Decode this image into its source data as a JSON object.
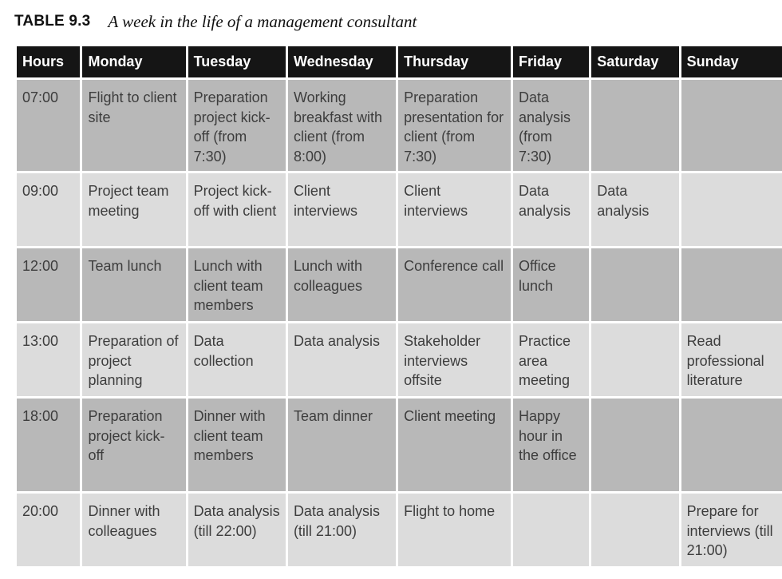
{
  "caption": {
    "label": "TABLE 9.3",
    "title": "A week in the life of a management consultant"
  },
  "table": {
    "headers": [
      "Hours",
      "Monday",
      "Tuesday",
      "Wednesday",
      "Thursday",
      "Friday",
      "Saturday",
      "Sunday"
    ],
    "rows": [
      [
        "07:00",
        "Flight to client site",
        "Preparation project kick-off (from 7:30)",
        "Working breakfast with client (from 8:00)",
        "Preparation presentation for client (from 7:30)",
        "Data analysis (from 7:30)",
        "",
        ""
      ],
      [
        "09:00",
        "Project team meeting",
        "Project kick-off with client",
        "Client interviews",
        "Client interviews",
        "Data analysis",
        "Data analysis",
        ""
      ],
      [
        "12:00",
        "Team lunch",
        "Lunch with client team members",
        "Lunch with colleagues",
        "Conference call",
        "Office lunch",
        "",
        ""
      ],
      [
        "13:00",
        "Preparation of project planning",
        "Data collection",
        "Data analysis",
        "Stakeholder interviews offsite",
        "Practice area meeting",
        "",
        "Read professional literature"
      ],
      [
        "18:00",
        "Preparation project kick-off",
        "Dinner with client team members",
        "Team dinner",
        "Client meeting",
        "Happy hour in the office",
        "",
        ""
      ],
      [
        "20:00",
        "Dinner with colleagues",
        "Data analysis (till 22:00)",
        "Data analysis (till 21:00)",
        "Flight to home",
        "",
        "",
        "Prepare for interviews (till 21:00)"
      ]
    ]
  }
}
